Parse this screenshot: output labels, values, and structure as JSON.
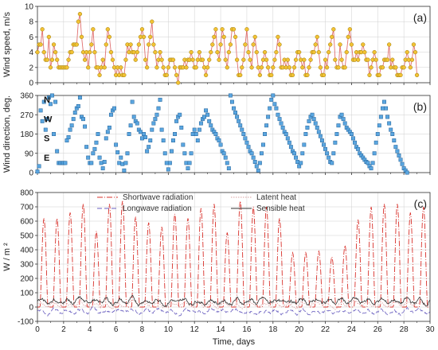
{
  "chart_data": [
    {
      "panel": "(a)",
      "type": "line",
      "ylabel": "Wind speed, m/s",
      "xlim": [
        0,
        30
      ],
      "ylim": [
        0,
        10
      ],
      "yticks": [
        0,
        2,
        4,
        6,
        8,
        10
      ],
      "xticks": [
        0,
        2,
        4,
        6,
        8,
        10,
        12,
        14,
        16,
        18,
        20,
        22,
        24,
        26,
        28,
        30
      ],
      "colors": {
        "line": "#e07070",
        "marker_fill": "#f2c233",
        "marker_stroke": "#9a7a10"
      },
      "series": [
        {
          "step_days": 0.125,
          "values": [
            4,
            5,
            5,
            7,
            4,
            3,
            3,
            6,
            2,
            3,
            5,
            4,
            3,
            2,
            2,
            2,
            2,
            2,
            2,
            3,
            4,
            4,
            5,
            5,
            5,
            8,
            9,
            6,
            4,
            3,
            4,
            2,
            4,
            5,
            7,
            4,
            2,
            2,
            1,
            2,
            3,
            2,
            5,
            7,
            6,
            4,
            3,
            2,
            1,
            2,
            1,
            2,
            1,
            1,
            3,
            5,
            4,
            5,
            4,
            4,
            3,
            4,
            5,
            6,
            7,
            6,
            3,
            2,
            5,
            6,
            8,
            5,
            4,
            2,
            3,
            4,
            3,
            2,
            1,
            1,
            2,
            3,
            3,
            3,
            2,
            1,
            0,
            2,
            2,
            2,
            3,
            2,
            3,
            3,
            4,
            3,
            2,
            2,
            3,
            4,
            3,
            3,
            2,
            1,
            2,
            3,
            4,
            5,
            6,
            7,
            4,
            3,
            5,
            7,
            6,
            3,
            2,
            4,
            5,
            7,
            7,
            6,
            3,
            1,
            1,
            2,
            3,
            5,
            7,
            4,
            3,
            2,
            5,
            6,
            4,
            2,
            1,
            2,
            3,
            4,
            3,
            2,
            1,
            1,
            2,
            3,
            4,
            6,
            5,
            2,
            2,
            3,
            2,
            3,
            2,
            1,
            1,
            2,
            3,
            4,
            4,
            3,
            2,
            3,
            1,
            1,
            2,
            3,
            4,
            4,
            5,
            6,
            4,
            2,
            1,
            1,
            3,
            2,
            4,
            5,
            6,
            7,
            3,
            2,
            2,
            5,
            3,
            2,
            2,
            4,
            6,
            7,
            5,
            3,
            3,
            4,
            3,
            4,
            4,
            5,
            4,
            3,
            3,
            1,
            2,
            3,
            4,
            3,
            1,
            1,
            2,
            2,
            3,
            3,
            3,
            5,
            2,
            3,
            2,
            2,
            1,
            1,
            1,
            2,
            2,
            3,
            4,
            3,
            2,
            3,
            5,
            4,
            1
          ]
        }
      ]
    },
    {
      "panel": "(b)",
      "type": "scatter",
      "ylabel": "Wind direction, deg.",
      "xlim": [
        0,
        30
      ],
      "ylim": [
        0,
        360
      ],
      "yticks": [
        0,
        90,
        180,
        270,
        360
      ],
      "xticks": [
        0,
        2,
        4,
        6,
        8,
        10,
        12,
        14,
        16,
        18,
        20,
        22,
        24,
        26,
        28,
        30
      ],
      "compass": [
        {
          "label": "N",
          "deg": 360
        },
        {
          "label": "W",
          "deg": 270
        },
        {
          "label": "S",
          "deg": 180
        },
        {
          "label": "E",
          "deg": 90
        }
      ],
      "colors": {
        "marker_fill": "#5aa6e0",
        "marker_stroke": "#1e5f97"
      },
      "series": [
        {
          "step_days": 0.125,
          "values": [
            5,
            30,
            290,
            240,
            330,
            200,
            250,
            350,
            320,
            360,
            180,
            330,
            100,
            45,
            45,
            45,
            45,
            45,
            150,
            165,
            200,
            220,
            250,
            280,
            300,
            310,
            350,
            260,
            250,
            215,
            120,
            70,
            45,
            45,
            90,
            110,
            140,
            180,
            70,
            45,
            20,
            50,
            160,
            190,
            210,
            270,
            290,
            300,
            130,
            95,
            45,
            70,
            40,
            10,
            45,
            90,
            180,
            220,
            330,
            260,
            240,
            230,
            200,
            190,
            160,
            180,
            165,
            100,
            120,
            150,
            200,
            230,
            250,
            270,
            300,
            340,
            200,
            150,
            90,
            45,
            15,
            45,
            100,
            150,
            180,
            240,
            260,
            270,
            210,
            130,
            90,
            45,
            20,
            45,
            90,
            180,
            200,
            180,
            150,
            200,
            230,
            250,
            260,
            290,
            270,
            240,
            220,
            200,
            190,
            180,
            160,
            150,
            130,
            100,
            90,
            70,
            45,
            20,
            360,
            330,
            300,
            280,
            260,
            240,
            220,
            200,
            180,
            160,
            140,
            120,
            100,
            90,
            70,
            50,
            30,
            10,
            45,
            90,
            130,
            180,
            220,
            260,
            300,
            340,
            360,
            320,
            300,
            270,
            250,
            230,
            210,
            190,
            180,
            160,
            140,
            120,
            100,
            90,
            70,
            50,
            30,
            45,
            90,
            130,
            180,
            210,
            240,
            260,
            270,
            250,
            230,
            210,
            190,
            170,
            150,
            130,
            110,
            90,
            70,
            50,
            45,
            90,
            140,
            180,
            220,
            260,
            270,
            250,
            230,
            210,
            200,
            190,
            180,
            160,
            140,
            120,
            110,
            90,
            80,
            70,
            60,
            50,
            45,
            30,
            20,
            45,
            90,
            140,
            180,
            220,
            260,
            300,
            330,
            300,
            260,
            230,
            200,
            180,
            150,
            120,
            100,
            80,
            60,
            40,
            20,
            10,
            0
          ]
        }
      ]
    },
    {
      "panel": "(c)",
      "type": "line",
      "xlabel": "Time, days",
      "ylabel": "W / m ²",
      "xlim": [
        0,
        30
      ],
      "ylim": [
        -100,
        800
      ],
      "yticks": [
        -100,
        0,
        100,
        200,
        300,
        400,
        500,
        600,
        700,
        800
      ],
      "xticks": [
        0,
        2,
        4,
        6,
        8,
        10,
        12,
        14,
        16,
        18,
        20,
        22,
        24,
        26,
        28,
        30
      ],
      "legend": [
        "Shortwave radiation",
        "Latent heat",
        "Longwave radiation",
        "Sensible heat"
      ],
      "series": [
        {
          "name": "Shortwave radiation",
          "kind": "daily_peaks",
          "color": "#d8302a",
          "dash": "7,2,1,2",
          "day_peaks": [
            620,
            620,
            660,
            720,
            530,
            720,
            740,
            630,
            590,
            560,
            650,
            620,
            690,
            720,
            520,
            740,
            700,
            700,
            620,
            380,
            380,
            390,
            350,
            430,
            610,
            700,
            720,
            720,
            660,
            700
          ]
        },
        {
          "name": "Latent heat",
          "kind": "noise",
          "color": "#d9a0a0",
          "dash": "1.5,1.5",
          "mean": 20,
          "amplitude": 25
        },
        {
          "name": "Longwave radiation",
          "kind": "noise",
          "color": "#6a5fc0",
          "dash": "6,3",
          "mean": -30,
          "amplitude": 25
        },
        {
          "name": "Sensible heat",
          "kind": "noise",
          "color": "#333333",
          "dash": "",
          "mean": 40,
          "amplitude": 30
        }
      ]
    }
  ]
}
